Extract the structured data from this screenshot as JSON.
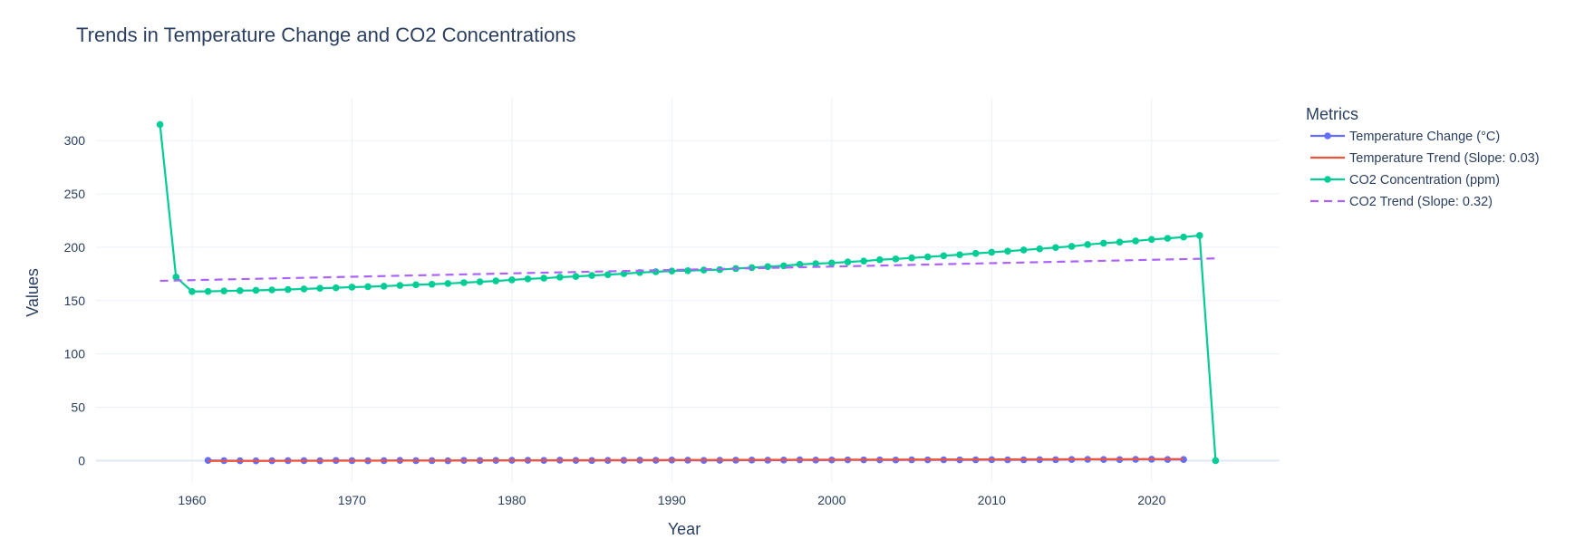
{
  "chart_data": {
    "type": "line",
    "title": "Trends in Temperature Change and CO2 Concentrations",
    "xlabel": "Year",
    "ylabel": "Values",
    "xlim": [
      1954,
      2028
    ],
    "ylim": [
      -20,
      340
    ],
    "x_ticks": [
      1960,
      1970,
      1980,
      1990,
      2000,
      2010,
      2020
    ],
    "y_ticks": [
      0,
      50,
      100,
      150,
      200,
      250,
      300
    ],
    "grid": true,
    "legend": {
      "title": "Metrics",
      "placement": "right"
    },
    "colors": {
      "temperature": "#636efa",
      "temperature_trend": "#ef553b",
      "co2": "#00cc96",
      "co2_trend": "#ab63fa",
      "grid": "#ebf0f8",
      "zeroline": "#e1e8f5",
      "text": "#2a3f5f"
    },
    "series": [
      {
        "name": "Temperature Change (°C)",
        "mode": "lines+markers",
        "x": [
          1961,
          1962,
          1963,
          1964,
          1965,
          1966,
          1967,
          1968,
          1969,
          1970,
          1971,
          1972,
          1973,
          1974,
          1975,
          1976,
          1977,
          1978,
          1979,
          1980,
          1981,
          1982,
          1983,
          1984,
          1985,
          1986,
          1987,
          1988,
          1989,
          1990,
          1991,
          1992,
          1993,
          1994,
          1995,
          1996,
          1997,
          1998,
          1999,
          2000,
          2001,
          2002,
          2003,
          2004,
          2005,
          2006,
          2007,
          2008,
          2009,
          2010,
          2011,
          2012,
          2013,
          2014,
          2015,
          2016,
          2017,
          2018,
          2019,
          2020,
          2021,
          2022
        ],
        "y": [
          0.2,
          0.0,
          -0.1,
          -0.2,
          -0.1,
          0.0,
          0.0,
          -0.1,
          0.1,
          0.0,
          -0.1,
          0.0,
          0.2,
          0.0,
          0.0,
          -0.1,
          0.2,
          0.1,
          0.2,
          0.3,
          0.3,
          0.2,
          0.4,
          0.2,
          0.1,
          0.2,
          0.3,
          0.4,
          0.3,
          0.5,
          0.4,
          0.2,
          0.3,
          0.4,
          0.5,
          0.4,
          0.5,
          0.8,
          0.5,
          0.6,
          0.7,
          0.7,
          0.7,
          0.6,
          0.8,
          0.7,
          0.8,
          0.7,
          0.8,
          0.9,
          0.8,
          0.8,
          0.9,
          0.9,
          1.1,
          1.2,
          1.1,
          1.0,
          1.2,
          1.3,
          1.1,
          1.1
        ]
      },
      {
        "name": "Temperature Trend (Slope: 0.03)",
        "mode": "lines",
        "x": [
          1961,
          2022
        ],
        "y": [
          -0.3,
          1.5
        ]
      },
      {
        "name": "CO2 Concentration (ppm)",
        "mode": "lines+markers",
        "x": [
          1958,
          1959,
          1960,
          1961,
          1962,
          1963,
          1964,
          1965,
          1966,
          1967,
          1968,
          1969,
          1970,
          1971,
          1972,
          1973,
          1974,
          1975,
          1976,
          1977,
          1978,
          1979,
          1980,
          1981,
          1982,
          1983,
          1984,
          1985,
          1986,
          1987,
          1988,
          1989,
          1990,
          1991,
          1992,
          1993,
          1994,
          1995,
          1996,
          1997,
          1998,
          1999,
          2000,
          2001,
          2002,
          2003,
          2004,
          2005,
          2006,
          2007,
          2008,
          2009,
          2010,
          2011,
          2012,
          2013,
          2014,
          2015,
          2016,
          2017,
          2018,
          2019,
          2020,
          2021,
          2022,
          2023,
          2024
        ],
        "y": [
          315,
          172,
          158.5,
          158.6,
          159,
          159.3,
          159.6,
          160,
          160.4,
          160.9,
          161.5,
          162,
          162.6,
          163,
          163.5,
          164.2,
          164.8,
          165.3,
          166,
          166.8,
          167.6,
          168.4,
          169.4,
          170.3,
          171,
          171.9,
          172.6,
          173.5,
          174.3,
          175.2,
          176.3,
          177,
          177.7,
          178,
          178.6,
          179,
          180,
          180.9,
          181.8,
          182.6,
          183.9,
          184.6,
          185.2,
          186.2,
          187,
          188.3,
          189,
          190,
          190.9,
          192,
          193,
          194.2,
          195.3,
          196.3,
          197.4,
          198.5,
          199.7,
          200.8,
          202.5,
          203.8,
          204.8,
          205.9,
          207.3,
          208.3,
          209.5,
          211,
          0
        ]
      },
      {
        "name": "CO2 Trend (Slope: 0.32)",
        "mode": "lines",
        "dash": "dash",
        "x": [
          1958,
          2024
        ],
        "y": [
          168.5,
          189.5
        ]
      }
    ]
  }
}
